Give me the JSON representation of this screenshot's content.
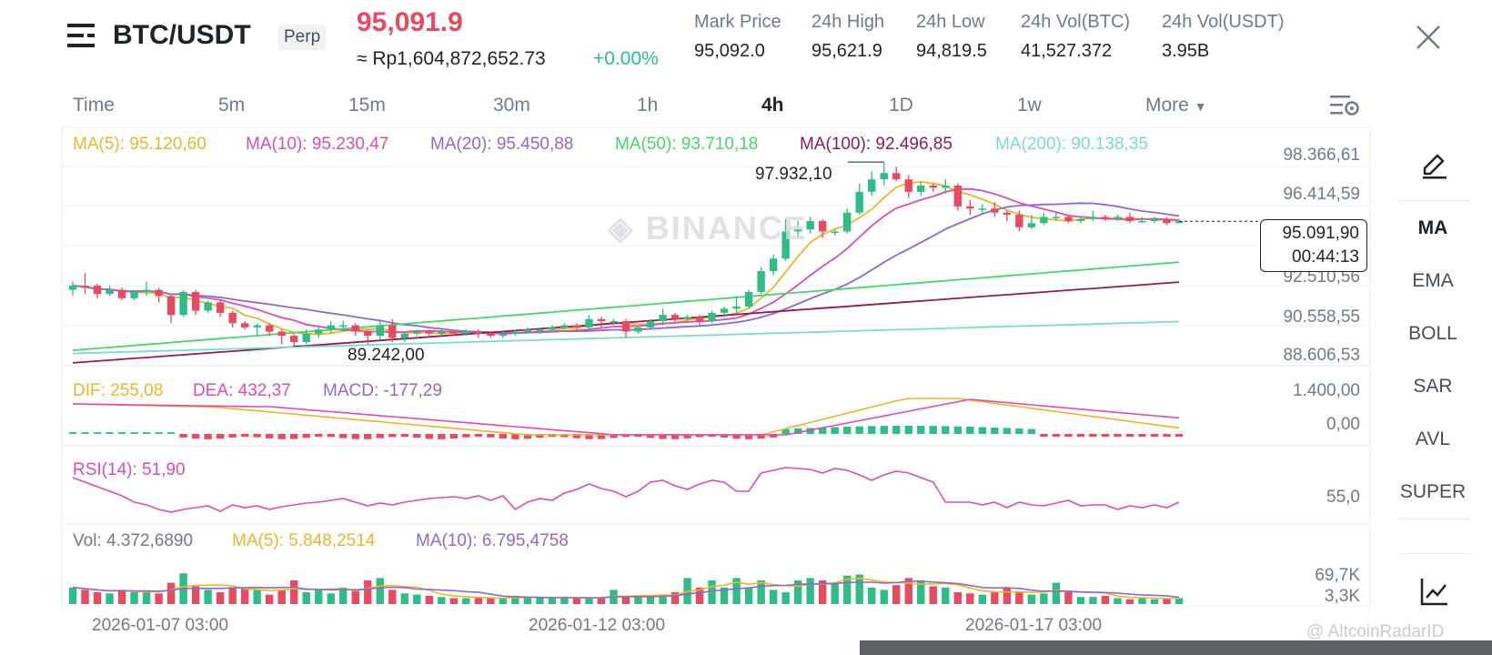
{
  "header": {
    "menu_icon": "menu-icon",
    "symbol": "BTC/USDT",
    "contract_badge": "Perp",
    "last_price": "95,091.9",
    "converted_price": "≈ Rp1,604,872,652.73",
    "change_percent": "+0.00%",
    "stats": [
      {
        "label": "Mark Price",
        "value": "95,092.0"
      },
      {
        "label": "24h High",
        "value": "95,621.9"
      },
      {
        "label": "24h Low",
        "value": "94,819.5"
      },
      {
        "label": "24h Vol(BTC)",
        "value": "41,527.372"
      },
      {
        "label": "24h Vol(USDT)",
        "value": "3.95B"
      }
    ],
    "close_icon": "close-icon"
  },
  "timeframes": {
    "items": [
      "Time",
      "5m",
      "15m",
      "30m",
      "1h",
      "4h",
      "1D",
      "1w",
      "More"
    ],
    "active": "4h",
    "settings_icon": "chart-settings-icon"
  },
  "main_chart": {
    "ma_legend": [
      {
        "label": "MA(5): 95.120,60",
        "color": "#e8b730"
      },
      {
        "label": "MA(10): 95.230,47",
        "color": "#d84fb0"
      },
      {
        "label": "MA(20): 95.450,88",
        "color": "#8e6ac6"
      },
      {
        "label": "MA(50): 93.710,18",
        "color": "#4bd36b"
      },
      {
        "label": "MA(100): 92.496,85",
        "color": "#8e1d53"
      },
      {
        "label": "MA(200): 90.138,35",
        "color": "#7edcc6"
      }
    ],
    "y_ticks": [
      "98.366,61",
      "96.414,59",
      "92.510,56",
      "90.558,55",
      "88.606,53"
    ],
    "high_label": "97.932,10",
    "low_label": "89.242,00",
    "current_price": "95.091,90",
    "countdown": "00:44:13",
    "watermark": "BINANCE",
    "candles": [
      [
        91.8,
        92.0,
        91.5,
        92.2
      ],
      [
        92.0,
        91.9,
        91.6,
        92.6
      ],
      [
        92.0,
        91.6,
        91.4,
        92.1
      ],
      [
        91.6,
        91.8,
        91.5,
        92.0
      ],
      [
        91.8,
        91.4,
        91.3,
        91.9
      ],
      [
        91.4,
        91.7,
        91.3,
        91.8
      ],
      [
        91.7,
        91.8,
        91.5,
        92.2
      ],
      [
        91.8,
        91.5,
        91.2,
        91.9
      ],
      [
        91.5,
        90.6,
        90.2,
        91.6
      ],
      [
        90.6,
        91.7,
        90.5,
        91.8
      ],
      [
        91.7,
        90.8,
        90.6,
        91.8
      ],
      [
        90.8,
        91.2,
        90.7,
        91.3
      ],
      [
        91.2,
        90.7,
        90.5,
        91.3
      ],
      [
        90.7,
        90.2,
        90.0,
        90.8
      ],
      [
        90.2,
        90.0,
        89.9,
        90.3
      ],
      [
        90.0,
        90.1,
        89.6,
        90.2
      ],
      [
        90.1,
        89.8,
        89.6,
        90.2
      ],
      [
        89.8,
        89.6,
        89.2,
        89.9
      ],
      [
        89.6,
        89.3,
        89.1,
        89.7
      ],
      [
        89.3,
        89.7,
        89.2,
        89.9
      ],
      [
        89.7,
        89.9,
        89.5,
        90.0
      ],
      [
        89.9,
        90.1,
        89.7,
        90.3
      ],
      [
        90.1,
        90.1,
        89.8,
        90.3
      ],
      [
        90.1,
        89.8,
        89.6,
        90.2
      ],
      [
        89.8,
        89.6,
        89.2,
        89.9
      ],
      [
        89.6,
        90.1,
        89.4,
        90.3
      ],
      [
        90.1,
        89.5,
        89.3,
        90.4
      ],
      [
        89.5,
        89.7,
        89.3,
        89.8
      ],
      [
        89.7,
        89.8,
        89.6,
        89.9
      ],
      [
        89.8,
        89.7,
        89.6,
        89.9
      ],
      [
        89.7,
        89.8,
        89.6,
        89.9
      ],
      [
        89.8,
        89.7,
        89.6,
        89.8
      ],
      [
        89.7,
        89.8,
        89.6,
        89.9
      ],
      [
        89.8,
        89.7,
        89.5,
        89.9
      ],
      [
        89.7,
        89.6,
        89.5,
        89.8
      ],
      [
        89.6,
        89.7,
        89.5,
        89.8
      ],
      [
        89.7,
        89.8,
        89.6,
        89.9
      ],
      [
        89.8,
        89.9,
        89.7,
        90.0
      ],
      [
        89.9,
        89.9,
        89.7,
        90.0
      ],
      [
        89.9,
        90.0,
        89.8,
        90.1
      ],
      [
        90.0,
        90.1,
        89.9,
        90.2
      ],
      [
        90.1,
        90.0,
        89.8,
        90.2
      ],
      [
        90.0,
        90.4,
        89.9,
        90.6
      ],
      [
        90.4,
        90.3,
        90.0,
        90.5
      ],
      [
        90.3,
        90.3,
        90.1,
        90.4
      ],
      [
        90.3,
        89.8,
        89.5,
        90.4
      ],
      [
        89.8,
        90.0,
        89.7,
        90.1
      ],
      [
        90.0,
        90.3,
        89.9,
        90.4
      ],
      [
        90.3,
        90.6,
        90.1,
        90.9
      ],
      [
        90.6,
        90.4,
        90.2,
        90.7
      ],
      [
        90.4,
        90.5,
        90.3,
        90.6
      ],
      [
        90.5,
        90.3,
        90.1,
        90.6
      ],
      [
        90.3,
        90.7,
        90.2,
        90.8
      ],
      [
        90.7,
        90.9,
        90.5,
        91.0
      ],
      [
        90.9,
        91.0,
        90.7,
        91.5
      ],
      [
        91.0,
        91.7,
        90.9,
        91.8
      ],
      [
        91.7,
        92.7,
        91.6,
        92.9
      ],
      [
        92.7,
        93.3,
        92.5,
        93.5
      ],
      [
        93.3,
        94.6,
        93.2,
        95.2
      ],
      [
        94.6,
        94.7,
        94.3,
        95.1
      ],
      [
        94.7,
        95.1,
        94.5,
        95.3
      ],
      [
        95.1,
        94.6,
        94.3,
        95.2
      ],
      [
        94.6,
        94.6,
        94.4,
        94.7
      ],
      [
        94.6,
        95.5,
        94.5,
        95.7
      ],
      [
        95.5,
        96.5,
        95.4,
        96.9
      ],
      [
        96.5,
        97.1,
        96.3,
        97.5
      ],
      [
        97.1,
        97.4,
        96.8,
        97.9
      ],
      [
        97.4,
        97.1,
        97.0,
        97.7
      ],
      [
        97.1,
        96.5,
        96.2,
        97.3
      ],
      [
        96.5,
        96.8,
        96.3,
        97.0
      ],
      [
        96.8,
        96.7,
        96.5,
        96.9
      ],
      [
        96.7,
        96.8,
        96.4,
        97.1
      ],
      [
        96.8,
        95.8,
        95.6,
        96.9
      ],
      [
        95.8,
        95.7,
        95.4,
        96.1
      ],
      [
        95.7,
        95.7,
        95.5,
        95.9
      ],
      [
        95.7,
        95.5,
        95.3,
        96.0
      ],
      [
        95.5,
        95.4,
        95.1,
        95.6
      ],
      [
        95.4,
        94.8,
        94.6,
        95.6
      ],
      [
        94.8,
        95.0,
        94.7,
        95.4
      ],
      [
        95.0,
        95.3,
        94.9,
        95.5
      ],
      [
        95.3,
        95.3,
        95.1,
        95.5
      ],
      [
        95.3,
        95.1,
        95.0,
        95.4
      ],
      [
        95.1,
        95.2,
        95.0,
        95.3
      ],
      [
        95.2,
        95.3,
        95.1,
        95.6
      ],
      [
        95.3,
        95.2,
        95.1,
        95.4
      ],
      [
        95.2,
        95.3,
        95.1,
        95.4
      ],
      [
        95.3,
        95.1,
        95.0,
        95.5
      ],
      [
        95.1,
        95.1,
        95.0,
        95.3
      ],
      [
        95.1,
        95.2,
        95.0,
        95.3
      ],
      [
        95.2,
        95.0,
        94.9,
        95.3
      ],
      [
        95.0,
        95.1,
        95.0,
        95.2
      ]
    ]
  },
  "macd": {
    "legend": [
      {
        "label": "DIF: 255,08",
        "color": "#e8b730"
      },
      {
        "label": "DEA: 432,37",
        "color": "#d84fb0"
      },
      {
        "label": "MACD: -177,29",
        "color": "#8e6ac6"
      }
    ],
    "y_ticks": [
      "1.400,00",
      "0,00"
    ]
  },
  "rsi": {
    "legend": [
      {
        "label": "RSI(14): 51,90",
        "color": "#d84fb0"
      }
    ],
    "y_ticks": [
      "55,0"
    ]
  },
  "volume": {
    "legend": [
      {
        "label": "Vol: 4.372,6890",
        "color": "#707a8a"
      },
      {
        "label": "MA(5): 5.848,2514",
        "color": "#e8b730"
      },
      {
        "label": "MA(10): 6.795,4758",
        "color": "#8e6ac6"
      }
    ],
    "y_ticks": [
      "69,7K",
      "3,3K"
    ]
  },
  "x_axis": [
    "2026-01-07 03:00",
    "2026-01-12 03:00",
    "2026-01-17 03:00"
  ],
  "sidebar": {
    "draw_icon": "pencil-icon",
    "items": [
      "MA",
      "EMA",
      "BOLL",
      "SAR",
      "AVL",
      "SUPER"
    ],
    "active": "MA",
    "indicator_icon": "indicator-chart-icon"
  },
  "watermark_footer": "@ AltcoinRadarID",
  "colors": {
    "up": "#2ebd85",
    "down": "#e84a5f"
  }
}
